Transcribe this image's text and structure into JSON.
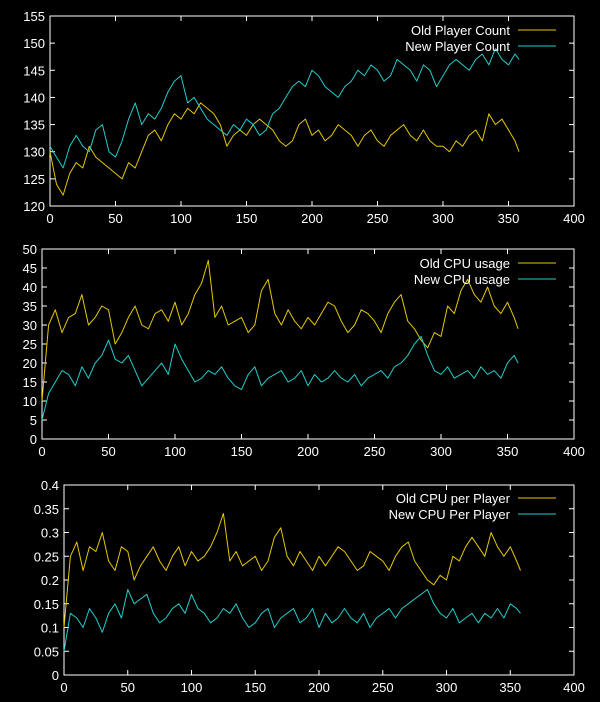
{
  "colors": {
    "background": "#000000",
    "axes": "#ffffff",
    "old": "#e6c700",
    "new": "#22cccc"
  },
  "chart_data": [
    {
      "type": "line",
      "xlim": [
        0,
        400
      ],
      "ylim": [
        120,
        155
      ],
      "xticks": [
        "0",
        "50",
        "100",
        "150",
        "200",
        "250",
        "300",
        "350",
        "400"
      ],
      "yticks": [
        "120",
        "125",
        "130",
        "135",
        "140",
        "145",
        "150",
        "155"
      ],
      "legend_position": "top-right",
      "grid": false,
      "series": [
        {
          "name": "Old Player Count",
          "color_key": "old",
          "x": [
            0,
            5,
            10,
            15,
            20,
            25,
            30,
            35,
            40,
            45,
            50,
            55,
            60,
            65,
            70,
            75,
            80,
            85,
            90,
            95,
            100,
            105,
            110,
            115,
            120,
            125,
            130,
            135,
            140,
            145,
            150,
            155,
            160,
            165,
            170,
            175,
            180,
            185,
            190,
            195,
            200,
            205,
            210,
            215,
            220,
            225,
            230,
            235,
            240,
            245,
            250,
            255,
            260,
            265,
            270,
            275,
            280,
            285,
            290,
            295,
            300,
            305,
            310,
            315,
            320,
            325,
            330,
            335,
            340,
            345,
            350,
            355,
            358
          ],
          "y": [
            130,
            124,
            122,
            126,
            128,
            127,
            131,
            129,
            128,
            127,
            126,
            125,
            128,
            127,
            130,
            133,
            134,
            132,
            135,
            137,
            136,
            138,
            137,
            139,
            138,
            137,
            135,
            131,
            133,
            134,
            133,
            135,
            136,
            135,
            134,
            132,
            131,
            132,
            135,
            136,
            133,
            134,
            132,
            133,
            135,
            134,
            133,
            131,
            133,
            134,
            132,
            131,
            133,
            134,
            135,
            133,
            132,
            134,
            132,
            131,
            131,
            130,
            132,
            131,
            133,
            134,
            132,
            137,
            135,
            136,
            134,
            132,
            130
          ]
        },
        {
          "name": "New Player Count",
          "color_key": "new",
          "x": [
            0,
            5,
            10,
            15,
            20,
            25,
            30,
            35,
            40,
            45,
            50,
            55,
            60,
            65,
            70,
            75,
            80,
            85,
            90,
            95,
            100,
            105,
            110,
            115,
            120,
            125,
            130,
            135,
            140,
            145,
            150,
            155,
            160,
            165,
            170,
            175,
            180,
            185,
            190,
            195,
            200,
            205,
            210,
            215,
            220,
            225,
            230,
            235,
            240,
            245,
            250,
            255,
            260,
            265,
            270,
            275,
            280,
            285,
            290,
            295,
            300,
            305,
            310,
            315,
            320,
            325,
            330,
            335,
            340,
            345,
            350,
            355,
            358
          ],
          "y": [
            131,
            129,
            127,
            131,
            133,
            131,
            130,
            134,
            135,
            130,
            129,
            132,
            136,
            139,
            135,
            137,
            136,
            138,
            141,
            143,
            144,
            139,
            140,
            138,
            136,
            135,
            134,
            133,
            135,
            134,
            136,
            135,
            133,
            134,
            137,
            138,
            140,
            142,
            143,
            142,
            145,
            144,
            142,
            141,
            140,
            142,
            143,
            145,
            144,
            146,
            145,
            143,
            144,
            147,
            146,
            145,
            143,
            146,
            145,
            142,
            144,
            146,
            147,
            146,
            145,
            147,
            148,
            146,
            149,
            147,
            146,
            148,
            147
          ]
        }
      ]
    },
    {
      "type": "line",
      "xlim": [
        0,
        400
      ],
      "ylim": [
        0,
        50
      ],
      "xticks": [
        "0",
        "50",
        "100",
        "150",
        "200",
        "250",
        "300",
        "350",
        "400"
      ],
      "yticks": [
        "0",
        "5",
        "10",
        "15",
        "20",
        "25",
        "30",
        "35",
        "40",
        "45",
        "50"
      ],
      "legend_position": "top-right",
      "grid": false,
      "series": [
        {
          "name": "Old CPU usage",
          "color_key": "old",
          "x": [
            0,
            5,
            10,
            15,
            20,
            25,
            30,
            35,
            40,
            45,
            50,
            55,
            60,
            65,
            70,
            75,
            80,
            85,
            90,
            95,
            100,
            105,
            110,
            115,
            120,
            125,
            130,
            135,
            140,
            145,
            150,
            155,
            160,
            165,
            170,
            175,
            180,
            185,
            190,
            195,
            200,
            205,
            210,
            215,
            220,
            225,
            230,
            235,
            240,
            245,
            250,
            255,
            260,
            265,
            270,
            275,
            280,
            285,
            290,
            295,
            300,
            305,
            310,
            315,
            320,
            325,
            330,
            335,
            340,
            345,
            350,
            355,
            358
          ],
          "y": [
            10,
            30,
            34,
            28,
            32,
            33,
            38,
            30,
            32,
            35,
            34,
            25,
            28,
            32,
            35,
            30,
            29,
            33,
            34,
            31,
            36,
            30,
            33,
            38,
            41,
            47,
            32,
            35,
            30,
            31,
            32,
            28,
            30,
            39,
            42,
            33,
            30,
            34,
            31,
            29,
            32,
            30,
            33,
            36,
            35,
            31,
            28,
            30,
            34,
            33,
            31,
            28,
            33,
            36,
            38,
            31,
            29,
            26,
            24,
            28,
            27,
            35,
            33,
            39,
            42,
            38,
            36,
            40,
            35,
            33,
            36,
            32,
            29
          ]
        },
        {
          "name": "New CPU usage",
          "color_key": "new",
          "x": [
            0,
            5,
            10,
            15,
            20,
            25,
            30,
            35,
            40,
            45,
            50,
            55,
            60,
            65,
            70,
            75,
            80,
            85,
            90,
            95,
            100,
            105,
            110,
            115,
            120,
            125,
            130,
            135,
            140,
            145,
            150,
            155,
            160,
            165,
            170,
            175,
            180,
            185,
            190,
            195,
            200,
            205,
            210,
            215,
            220,
            225,
            230,
            235,
            240,
            245,
            250,
            255,
            260,
            265,
            270,
            275,
            280,
            285,
            290,
            295,
            300,
            305,
            310,
            315,
            320,
            325,
            330,
            335,
            340,
            345,
            350,
            355,
            358
          ],
          "y": [
            5,
            12,
            15,
            18,
            17,
            14,
            19,
            16,
            20,
            22,
            26,
            21,
            20,
            22,
            18,
            14,
            16,
            18,
            20,
            17,
            25,
            21,
            18,
            15,
            16,
            18,
            17,
            19,
            16,
            14,
            13,
            17,
            19,
            14,
            16,
            17,
            18,
            15,
            16,
            18,
            14,
            17,
            15,
            16,
            18,
            16,
            15,
            17,
            14,
            16,
            17,
            18,
            16,
            19,
            20,
            22,
            25,
            27,
            22,
            18,
            17,
            19,
            16,
            17,
            18,
            16,
            19,
            17,
            18,
            16,
            20,
            22,
            20
          ]
        }
      ]
    },
    {
      "type": "line",
      "xlim": [
        0,
        400
      ],
      "ylim": [
        0,
        0.4
      ],
      "xticks": [
        "0",
        "50",
        "100",
        "150",
        "200",
        "250",
        "300",
        "350",
        "400"
      ],
      "yticks": [
        "0",
        "0.05",
        "0.1",
        "0.15",
        "0.2",
        "0.25",
        "0.3",
        "0.35",
        "0.4"
      ],
      "legend_position": "top-right",
      "grid": false,
      "series": [
        {
          "name": "Old CPU per Player",
          "color_key": "old",
          "x": [
            0,
            5,
            10,
            15,
            20,
            25,
            30,
            35,
            40,
            45,
            50,
            55,
            60,
            65,
            70,
            75,
            80,
            85,
            90,
            95,
            100,
            105,
            110,
            115,
            120,
            125,
            130,
            135,
            140,
            145,
            150,
            155,
            160,
            165,
            170,
            175,
            180,
            185,
            190,
            195,
            200,
            205,
            210,
            215,
            220,
            225,
            230,
            235,
            240,
            245,
            250,
            255,
            260,
            265,
            270,
            275,
            280,
            285,
            290,
            295,
            300,
            305,
            310,
            315,
            320,
            325,
            330,
            335,
            340,
            345,
            350,
            355,
            358
          ],
          "y": [
            0.1,
            0.25,
            0.28,
            0.22,
            0.27,
            0.26,
            0.3,
            0.24,
            0.22,
            0.27,
            0.26,
            0.2,
            0.23,
            0.25,
            0.27,
            0.24,
            0.22,
            0.25,
            0.27,
            0.23,
            0.26,
            0.24,
            0.25,
            0.27,
            0.3,
            0.34,
            0.24,
            0.26,
            0.23,
            0.24,
            0.25,
            0.22,
            0.24,
            0.29,
            0.31,
            0.25,
            0.23,
            0.26,
            0.24,
            0.22,
            0.25,
            0.23,
            0.25,
            0.27,
            0.26,
            0.24,
            0.22,
            0.23,
            0.26,
            0.25,
            0.24,
            0.22,
            0.25,
            0.27,
            0.28,
            0.24,
            0.22,
            0.2,
            0.19,
            0.21,
            0.2,
            0.25,
            0.24,
            0.27,
            0.29,
            0.27,
            0.25,
            0.3,
            0.27,
            0.25,
            0.27,
            0.24,
            0.22
          ]
        },
        {
          "name": "New CPU Per Player",
          "color_key": "new",
          "x": [
            0,
            5,
            10,
            15,
            20,
            25,
            30,
            35,
            40,
            45,
            50,
            55,
            60,
            65,
            70,
            75,
            80,
            85,
            90,
            95,
            100,
            105,
            110,
            115,
            120,
            125,
            130,
            135,
            140,
            145,
            150,
            155,
            160,
            165,
            170,
            175,
            180,
            185,
            190,
            195,
            200,
            205,
            210,
            215,
            220,
            225,
            230,
            235,
            240,
            245,
            250,
            255,
            260,
            265,
            270,
            275,
            280,
            285,
            290,
            295,
            300,
            305,
            310,
            315,
            320,
            325,
            330,
            335,
            340,
            345,
            350,
            355,
            358
          ],
          "y": [
            0.05,
            0.13,
            0.12,
            0.1,
            0.14,
            0.12,
            0.09,
            0.13,
            0.15,
            0.12,
            0.18,
            0.15,
            0.16,
            0.17,
            0.13,
            0.11,
            0.12,
            0.14,
            0.15,
            0.13,
            0.17,
            0.14,
            0.13,
            0.11,
            0.12,
            0.14,
            0.13,
            0.15,
            0.12,
            0.1,
            0.11,
            0.13,
            0.14,
            0.1,
            0.12,
            0.13,
            0.14,
            0.11,
            0.12,
            0.14,
            0.1,
            0.13,
            0.11,
            0.12,
            0.14,
            0.12,
            0.11,
            0.13,
            0.1,
            0.12,
            0.13,
            0.14,
            0.12,
            0.14,
            0.15,
            0.16,
            0.17,
            0.18,
            0.15,
            0.13,
            0.12,
            0.14,
            0.11,
            0.12,
            0.13,
            0.11,
            0.13,
            0.12,
            0.14,
            0.12,
            0.15,
            0.14,
            0.13
          ]
        }
      ]
    }
  ]
}
